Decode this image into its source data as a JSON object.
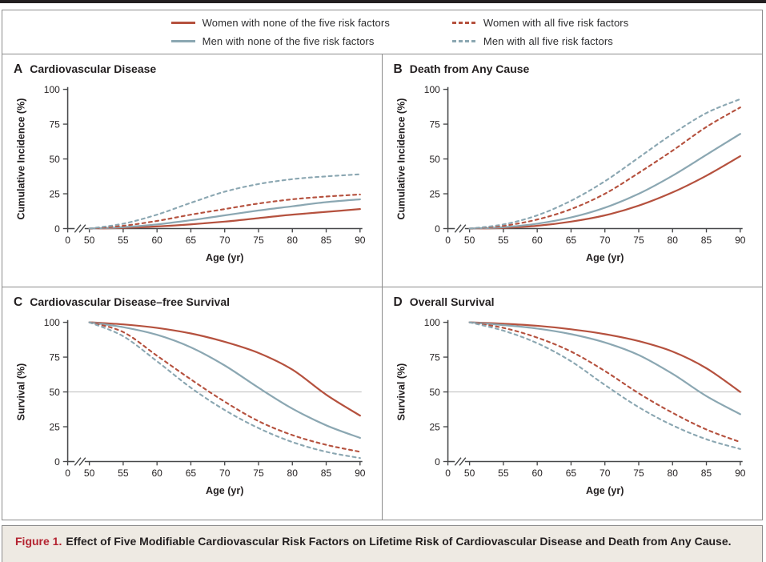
{
  "colors": {
    "women": "#b5513e",
    "men": "#8ba7b2",
    "text": "#231f20",
    "axis": "#47484a",
    "border": "#8c8c8c",
    "refline": "#c8c8c8",
    "caption_bg": "#eeeae3",
    "caption_label_red": "#b42431"
  },
  "legend": {
    "items": [
      {
        "label": "Women with none of the five risk factors",
        "color_key": "women",
        "dashed": false
      },
      {
        "label": "Women with all five risk factors",
        "color_key": "women",
        "dashed": true
      },
      {
        "label": "Men with none of the five risk factors",
        "color_key": "men",
        "dashed": false
      },
      {
        "label": "Men with all five risk factors",
        "color_key": "men",
        "dashed": true
      }
    ]
  },
  "caption": {
    "label": "Figure 1.",
    "text": "Effect of Five Modifiable Cardiovascular Risk Factors on Lifetime Risk of Cardiovascular Disease and Death from Any Cause."
  },
  "chart_data": [
    {
      "letter": "A",
      "title": "Cardiovascular Disease",
      "type": "line",
      "xlabel": "Age (yr)",
      "ylabel": "Cumulative Incidence (%)",
      "ylim": [
        0,
        100
      ],
      "y_ticks": [
        0,
        25,
        50,
        75,
        100
      ],
      "x_ticks": [
        0,
        50,
        55,
        60,
        65,
        70,
        75,
        80,
        85,
        90
      ],
      "axis_break": true,
      "refline_y": null,
      "x": [
        50,
        55,
        60,
        65,
        70,
        75,
        80,
        85,
        90
      ],
      "series": [
        {
          "name": "Women with none of the five risk factors",
          "color_key": "women",
          "dashed": false,
          "values": [
            0,
            0.5,
            1.5,
            3,
            5,
            7.5,
            10,
            12,
            14
          ]
        },
        {
          "name": "Men with none of the five risk factors",
          "color_key": "men",
          "dashed": false,
          "values": [
            0,
            1,
            3,
            6,
            9.5,
            13,
            16,
            19,
            21
          ]
        },
        {
          "name": "Women with all five risk factors",
          "color_key": "women",
          "dashed": true,
          "values": [
            0,
            2,
            5.5,
            10,
            14,
            18,
            21,
            23,
            24.5
          ]
        },
        {
          "name": "Men with all five risk factors",
          "color_key": "men",
          "dashed": true,
          "values": [
            0,
            3.5,
            10,
            18.5,
            26.5,
            32,
            35.5,
            37.5,
            39
          ]
        }
      ]
    },
    {
      "letter": "B",
      "title": "Death from Any Cause",
      "type": "line",
      "xlabel": "Age (yr)",
      "ylabel": "Cumulative Incidence (%)",
      "ylim": [
        0,
        100
      ],
      "y_ticks": [
        0,
        25,
        50,
        75,
        100
      ],
      "x_ticks": [
        0,
        50,
        55,
        60,
        65,
        70,
        75,
        80,
        85,
        90
      ],
      "axis_break": true,
      "refline_y": null,
      "x": [
        50,
        55,
        60,
        65,
        70,
        75,
        80,
        85,
        90
      ],
      "series": [
        {
          "name": "Women with none of the five risk factors",
          "color_key": "women",
          "dashed": false,
          "values": [
            0,
            0.5,
            2,
            5,
            9.5,
            16.5,
            26,
            38,
            52
          ]
        },
        {
          "name": "Men with none of the five risk factors",
          "color_key": "men",
          "dashed": false,
          "values": [
            0,
            1,
            3.5,
            8,
            15,
            25,
            38,
            53,
            68
          ]
        },
        {
          "name": "Women with all five risk factors",
          "color_key": "women",
          "dashed": true,
          "values": [
            0,
            2,
            6.5,
            14,
            25,
            40,
            56,
            73,
            87
          ]
        },
        {
          "name": "Men with all five risk factors",
          "color_key": "men",
          "dashed": true,
          "values": [
            0,
            3,
            9.5,
            20,
            34,
            51,
            68,
            83,
            93
          ]
        }
      ]
    },
    {
      "letter": "C",
      "title": "Cardiovascular Disease–free Survival",
      "type": "line",
      "xlabel": "Age (yr)",
      "ylabel": "Survival (%)",
      "ylim": [
        0,
        100
      ],
      "y_ticks": [
        0,
        25,
        50,
        75,
        100
      ],
      "x_ticks": [
        0,
        50,
        55,
        60,
        65,
        70,
        75,
        80,
        85,
        90
      ],
      "axis_break": true,
      "refline_y": 50,
      "x": [
        50,
        55,
        60,
        65,
        70,
        75,
        80,
        85,
        90
      ],
      "series": [
        {
          "name": "Women with none of the five risk factors",
          "color_key": "women",
          "dashed": false,
          "values": [
            100,
            98.5,
            96,
            92,
            86,
            78,
            66,
            48,
            33
          ]
        },
        {
          "name": "Men with none of the five risk factors",
          "color_key": "men",
          "dashed": false,
          "values": [
            100,
            96.5,
            91,
            82,
            69,
            53,
            38,
            26,
            17
          ]
        },
        {
          "name": "Women with all five risk factors",
          "color_key": "women",
          "dashed": true,
          "values": [
            100,
            93,
            76,
            59,
            43,
            29,
            19,
            12,
            7
          ]
        },
        {
          "name": "Men with all five risk factors",
          "color_key": "men",
          "dashed": true,
          "values": [
            100,
            90,
            72,
            53,
            37,
            24,
            14,
            7,
            2.5
          ]
        }
      ]
    },
    {
      "letter": "D",
      "title": "Overall Survival",
      "type": "line",
      "xlabel": "Age (yr)",
      "ylabel": "Survival (%)",
      "ylim": [
        0,
        100
      ],
      "y_ticks": [
        0,
        25,
        50,
        75,
        100
      ],
      "x_ticks": [
        0,
        50,
        55,
        60,
        65,
        70,
        75,
        80,
        85,
        90
      ],
      "axis_break": true,
      "refline_y": 50,
      "x": [
        50,
        55,
        60,
        65,
        70,
        75,
        80,
        85,
        90
      ],
      "series": [
        {
          "name": "Women with none of the five risk factors",
          "color_key": "women",
          "dashed": false,
          "values": [
            100,
            99,
            97.5,
            95,
            91.5,
            86.5,
            79,
            67,
            50
          ]
        },
        {
          "name": "Men with none of the five risk factors",
          "color_key": "men",
          "dashed": false,
          "values": [
            100,
            98,
            95.5,
            91.5,
            85.5,
            76.5,
            63,
            47,
            34
          ]
        },
        {
          "name": "Women with all five risk factors",
          "color_key": "women",
          "dashed": true,
          "values": [
            100,
            96,
            89,
            79,
            65,
            49,
            35,
            23,
            14
          ]
        },
        {
          "name": "Men with all five risk factors",
          "color_key": "men",
          "dashed": true,
          "values": [
            100,
            94,
            85,
            72,
            55,
            39,
            26,
            16,
            9
          ]
        }
      ]
    }
  ]
}
